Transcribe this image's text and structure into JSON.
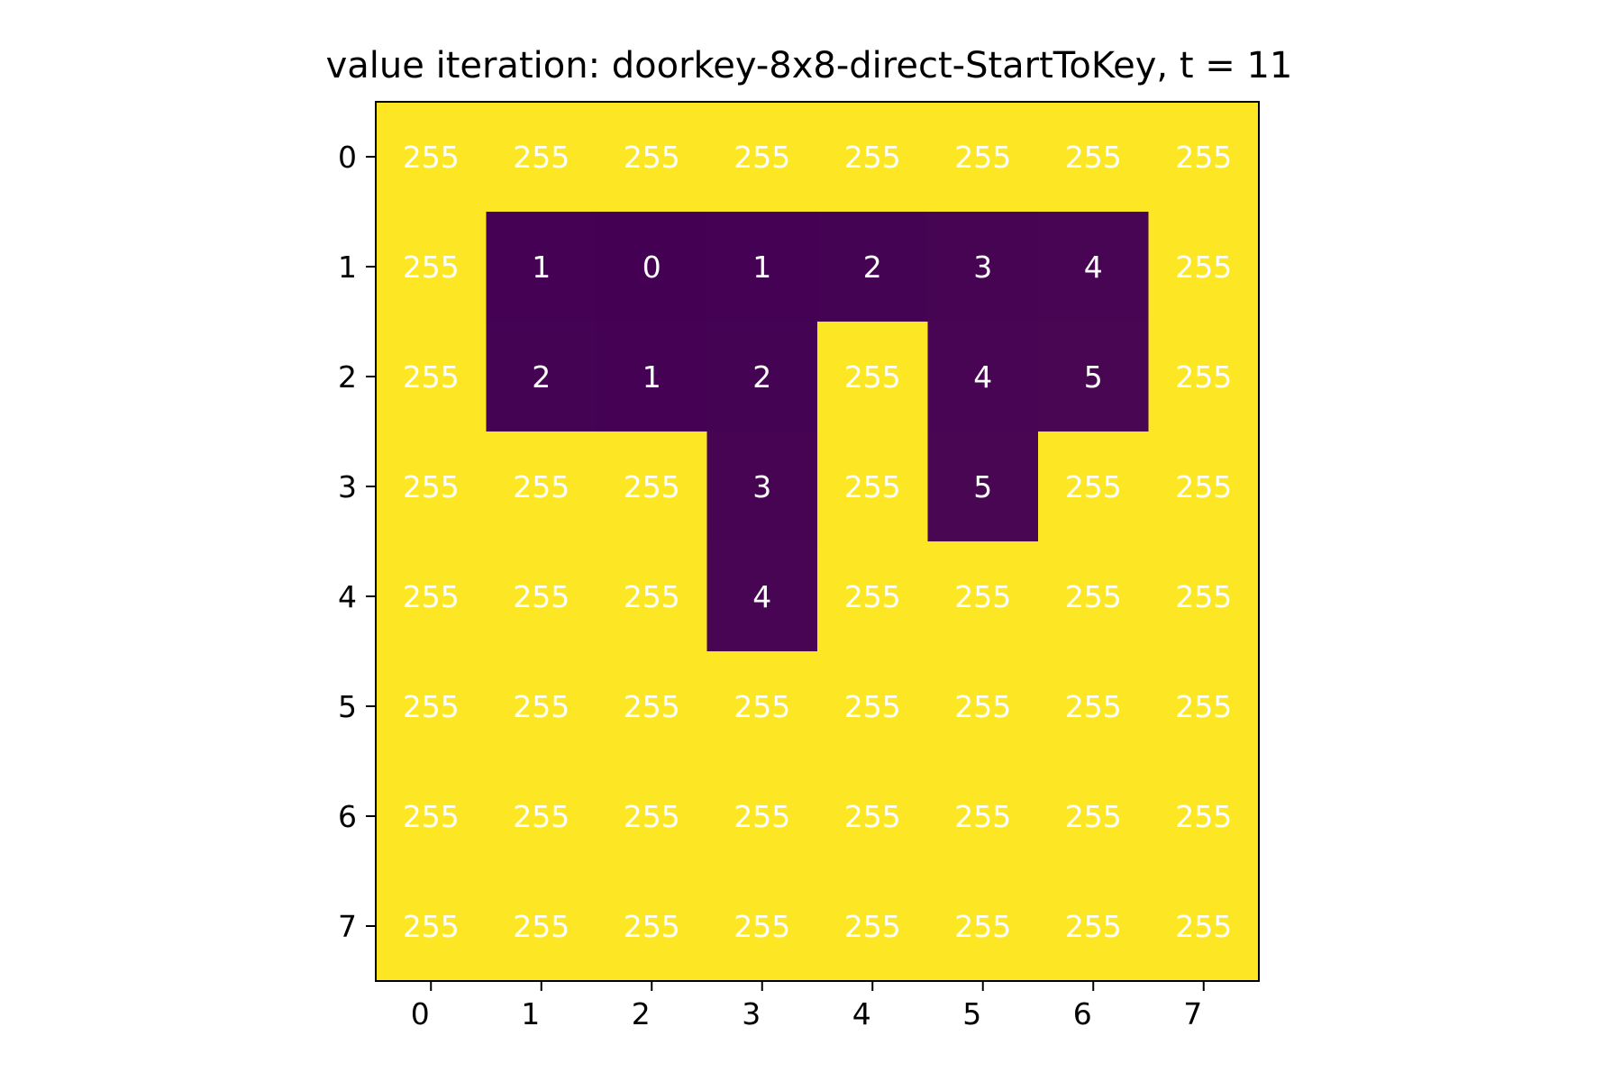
{
  "chart_data": {
    "type": "heatmap",
    "title": "value iteration: doorkey-8x8-direct-StartToKey, t = 11",
    "xlabel": "",
    "ylabel": "",
    "x_ticks": [
      "0",
      "1",
      "2",
      "3",
      "4",
      "5",
      "6",
      "7"
    ],
    "y_ticks": [
      "0",
      "1",
      "2",
      "3",
      "4",
      "5",
      "6",
      "7"
    ],
    "values": [
      [
        255,
        255,
        255,
        255,
        255,
        255,
        255,
        255
      ],
      [
        255,
        1,
        0,
        1,
        2,
        3,
        4,
        255
      ],
      [
        255,
        2,
        1,
        2,
        255,
        4,
        5,
        255
      ],
      [
        255,
        255,
        255,
        3,
        255,
        5,
        255,
        255
      ],
      [
        255,
        255,
        255,
        4,
        255,
        255,
        255,
        255
      ],
      [
        255,
        255,
        255,
        255,
        255,
        255,
        255,
        255
      ],
      [
        255,
        255,
        255,
        255,
        255,
        255,
        255,
        255
      ],
      [
        255,
        255,
        255,
        255,
        255,
        255,
        255,
        255
      ]
    ],
    "value_range": [
      0,
      255
    ],
    "colormap": "viridis",
    "colors": {
      "low": "#440154",
      "high": "#fde725",
      "cell_text": "#ffffff",
      "axes": "#000000"
    },
    "grid": false,
    "legend": "none"
  }
}
